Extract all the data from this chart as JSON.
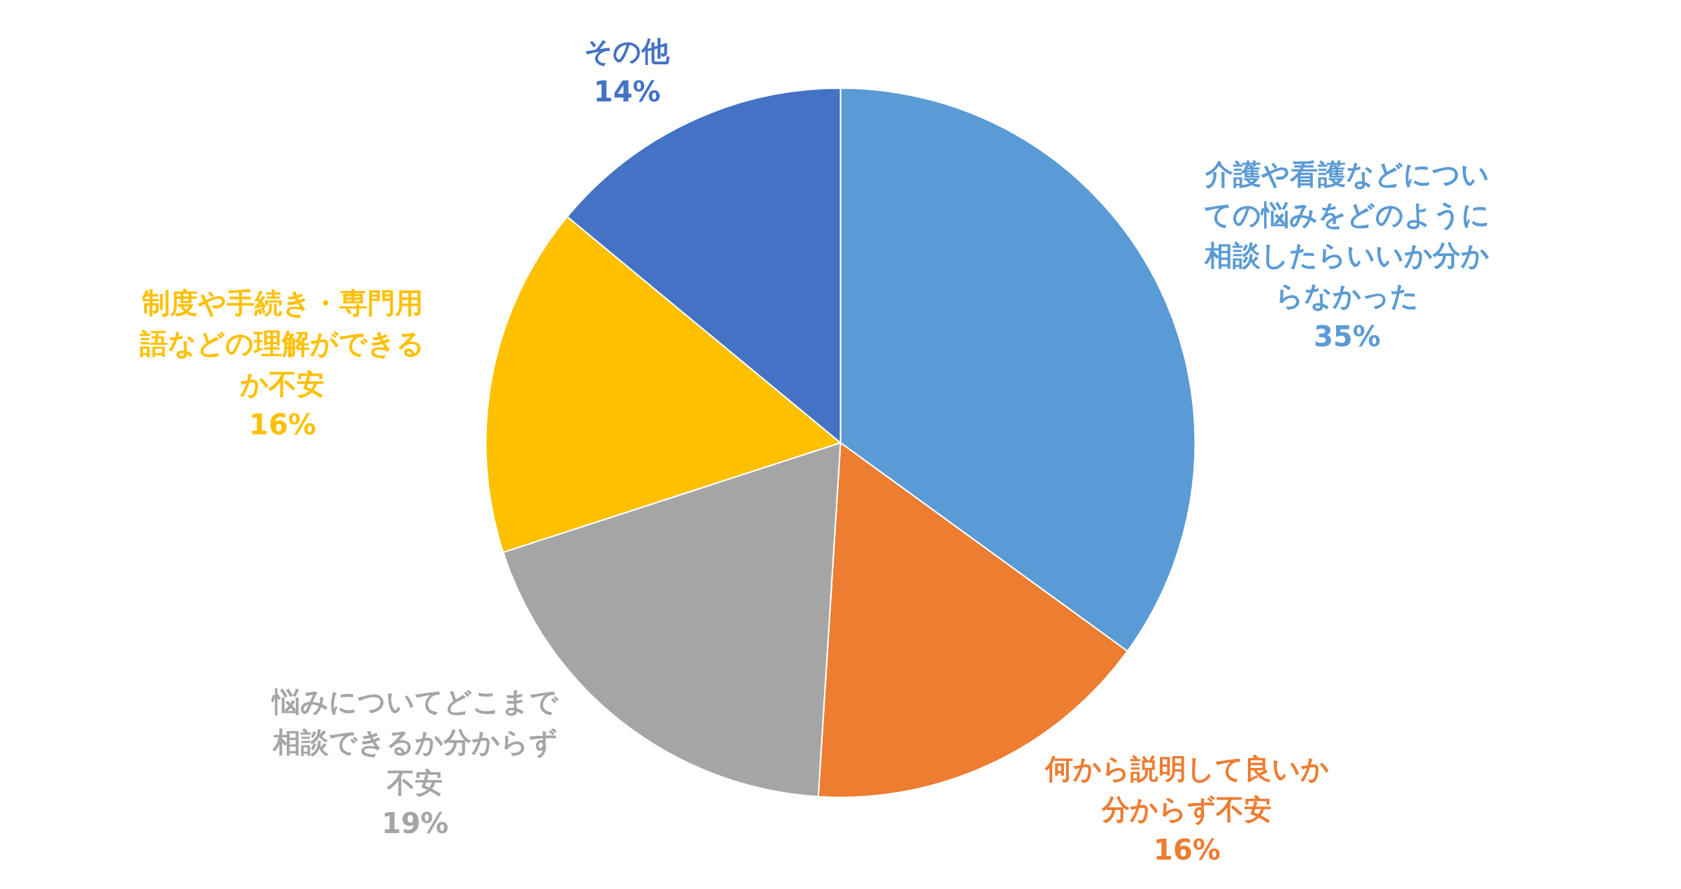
{
  "chart_data": {
    "type": "pie",
    "categories": [
      "介護や看護などについての悩みをどのように相談したらいいか分からなかった",
      "何から説明して良いか分からず不安",
      "悩みについてどこまで相談できるか分からず不安",
      "制度や手続き・専門用語などの理解ができるか不安",
      "その他"
    ],
    "values": [
      35,
      16,
      19,
      16,
      14
    ],
    "colors": [
      "#5b9bd5",
      "#ed7d31",
      "#a5a5a5",
      "#ffc000",
      "#4472c4"
    ],
    "value_labels": [
      "35%",
      "16%",
      "19%",
      "16%",
      "14%"
    ],
    "legend": false
  }
}
